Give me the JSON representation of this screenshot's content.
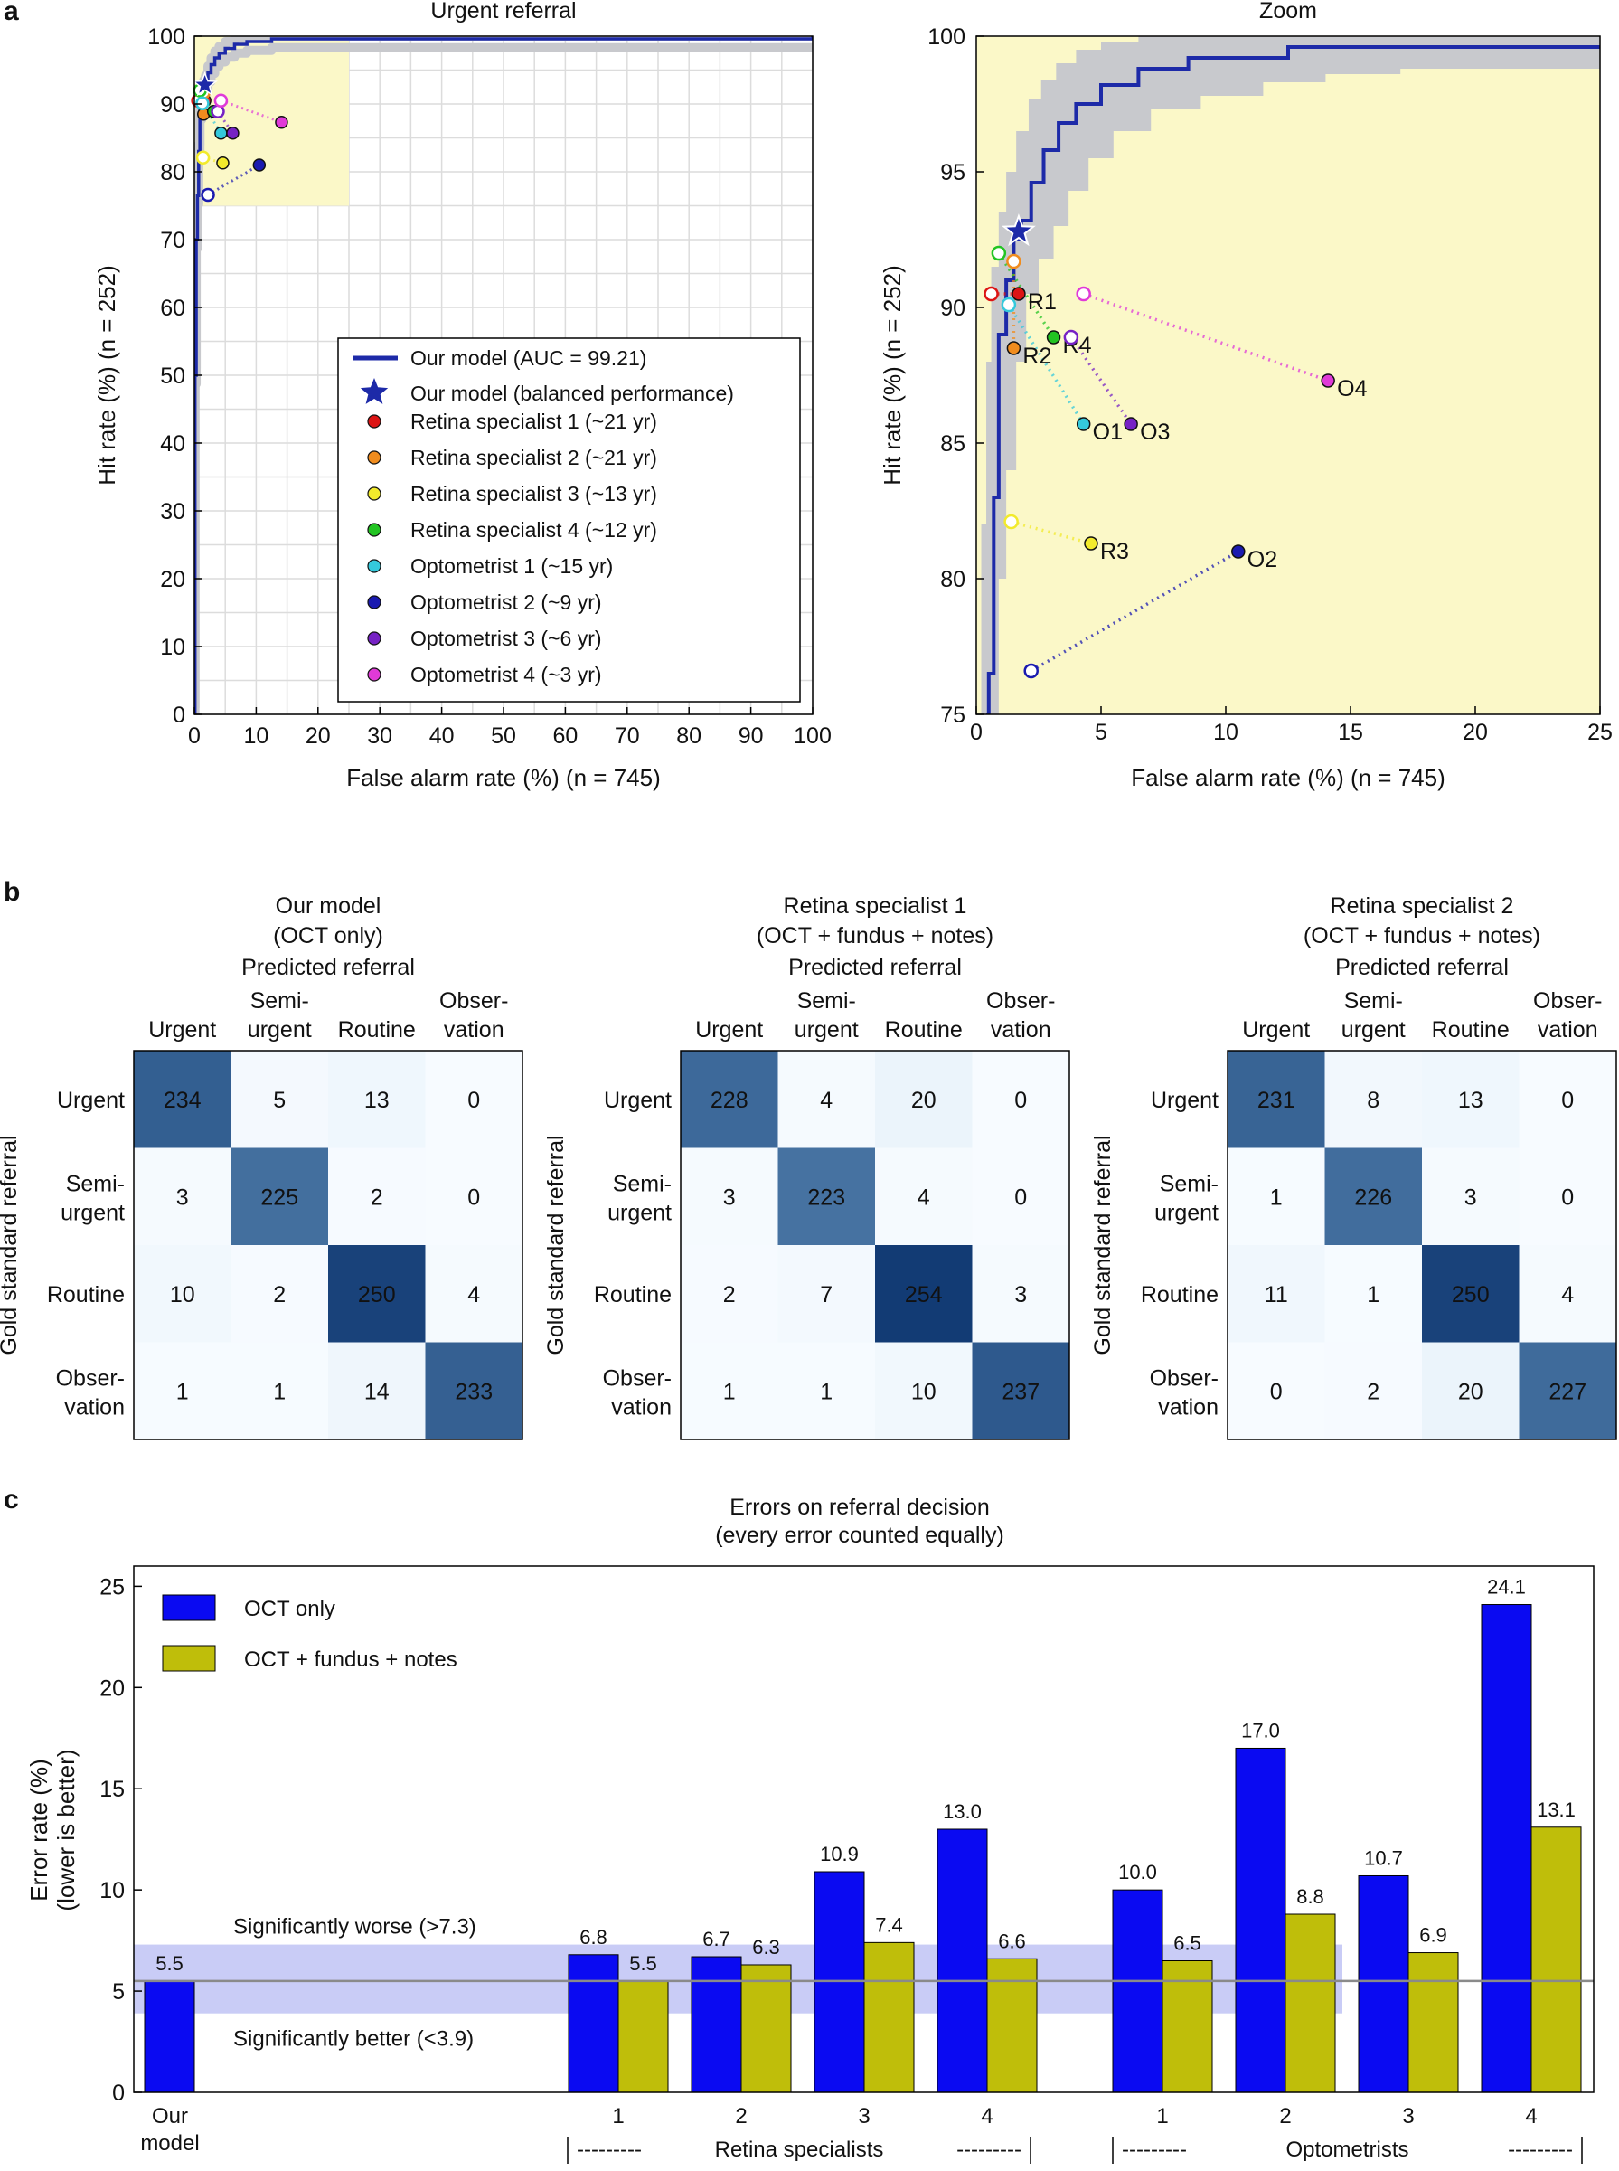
{
  "colors": {
    "model": "#1d2aa8",
    "band": "#c8c9cd",
    "zoom_bg": "#fbf8c8",
    "oct_only": "#0a0af2",
    "oct_fundus": "#bfbe0a",
    "sig_band": "#c9ccf6"
  },
  "panel_a": {
    "label": "a",
    "legend_curve": "Our model (AUC = 99.21)",
    "legend_star": "Our model (balanced performance)",
    "readers": [
      {
        "name": "Retina specialist 1 (~21 yr)",
        "tag": "R1",
        "color": "#dc1414",
        "fa_oct": 0.6,
        "hr_oct": 90.5,
        "fa_full": 1.7,
        "hr_full": 90.5
      },
      {
        "name": "Retina specialist 2 (~21 yr)",
        "tag": "R2",
        "color": "#f08c1e",
        "fa_oct": 1.5,
        "hr_oct": 91.7,
        "fa_full": 1.5,
        "hr_full": 88.5
      },
      {
        "name": "Retina specialist 3 (~13 yr)",
        "tag": "R3",
        "color": "#f2ea2c",
        "fa_oct": 1.4,
        "hr_oct": 82.1,
        "fa_full": 4.6,
        "hr_full": 81.3
      },
      {
        "name": "Retina specialist 4 (~12 yr)",
        "tag": "R4",
        "color": "#22c422",
        "fa_oct": 0.9,
        "hr_oct": 92.0,
        "fa_full": 3.1,
        "hr_full": 88.9
      },
      {
        "name": "Optometrist 1 (~15 yr)",
        "tag": "O1",
        "color": "#34c9dc",
        "fa_oct": 1.3,
        "hr_oct": 90.1,
        "fa_full": 4.3,
        "hr_full": 85.7
      },
      {
        "name": "Optometrist 2 (~9 yr)",
        "tag": "O2",
        "color": "#1a1ab0",
        "fa_oct": 2.2,
        "hr_oct": 76.6,
        "fa_full": 10.5,
        "hr_full": 81.0
      },
      {
        "name": "Optometrist 3 (~6 yr)",
        "tag": "O3",
        "color": "#7622c4",
        "fa_oct": 3.8,
        "hr_oct": 88.9,
        "fa_full": 6.2,
        "hr_full": 85.7
      },
      {
        "name": "Optometrist 4 (~3 yr)",
        "tag": "O4",
        "color": "#e03ad8",
        "fa_oct": 4.3,
        "hr_oct": 90.5,
        "fa_full": 14.1,
        "hr_full": 87.3
      }
    ]
  },
  "chart_data": [
    {
      "type": "line",
      "title": "Urgent referral",
      "xlabel": "False alarm rate (%) (n = 745)",
      "ylabel": "Hit rate (%) (n = 252)",
      "xlim": [
        0,
        100
      ],
      "ylim": [
        0,
        100
      ],
      "xticks": [
        0,
        10,
        20,
        30,
        40,
        50,
        60,
        70,
        80,
        90,
        100
      ],
      "yticks": [
        0,
        10,
        20,
        30,
        40,
        50,
        60,
        70,
        80,
        90,
        100
      ],
      "grid": true,
      "legend_position": "lower-right",
      "series": [
        {
          "name": "Our model (AUC = 99.21)",
          "x": [
            0,
            0.1,
            0.3,
            0.5,
            0.7,
            0.9,
            1.2,
            1.5,
            1.8,
            2.2,
            2.7,
            3.3,
            4.0,
            5.0,
            6.5,
            8.5,
            10.5,
            12.5,
            16,
            20,
            25,
            30,
            40,
            50,
            60,
            70,
            80,
            90,
            100
          ],
          "y": [
            0,
            50,
            70,
            76.5,
            83,
            89,
            91,
            92.5,
            93.2,
            94.6,
            95.8,
            96.8,
            97.5,
            98.2,
            98.8,
            99.2,
            99.2,
            99.6,
            99.6,
            99.6,
            99.6,
            99.6,
            99.6,
            99.6,
            99.6,
            99.6,
            99.6,
            99.6,
            100
          ]
        }
      ],
      "balanced_point": {
        "x": 1.7,
        "y": 92.8
      }
    },
    {
      "type": "line",
      "title": "Zoom",
      "xlabel": "False alarm rate (%) (n = 745)",
      "ylabel": "Hit rate (%) (n = 252)",
      "xlim": [
        0,
        25
      ],
      "ylim": [
        75,
        100
      ],
      "xticks": [
        0,
        5,
        10,
        15,
        20,
        25
      ],
      "yticks": [
        75,
        80,
        85,
        90,
        95,
        100
      ],
      "grid": false,
      "series": [
        {
          "name": "Our model (AUC = 99.21)",
          "x": [
            0.4,
            0.5,
            0.7,
            0.9,
            1.2,
            1.5,
            1.8,
            2.2,
            2.7,
            3.3,
            4.0,
            5.0,
            6.5,
            8.5,
            10.5,
            12.5,
            16,
            20,
            25
          ],
          "y": [
            75,
            76.5,
            83,
            89,
            91,
            92.5,
            93.2,
            94.6,
            95.8,
            96.8,
            97.5,
            98.2,
            98.8,
            99.2,
            99.2,
            99.6,
            99.6,
            99.6,
            99.6
          ]
        }
      ],
      "balanced_point": {
        "x": 1.7,
        "y": 92.8
      }
    },
    {
      "type": "heatmap",
      "title": "Our model",
      "subtitle": "(OCT only)",
      "header": "Predicted referral",
      "ylabel": "Gold standard referral",
      "matrix": [
        [
          234,
          5,
          13,
          0
        ],
        [
          3,
          225,
          2,
          0
        ],
        [
          10,
          2,
          250,
          4
        ],
        [
          1,
          1,
          14,
          233
        ]
      ]
    },
    {
      "type": "heatmap",
      "title": "Retina specialist 1",
      "subtitle": "(OCT + fundus + notes)",
      "header": "Predicted referral",
      "ylabel": "Gold standard referral",
      "matrix": [
        [
          228,
          4,
          20,
          0
        ],
        [
          3,
          223,
          4,
          0
        ],
        [
          2,
          7,
          254,
          3
        ],
        [
          1,
          1,
          10,
          237
        ]
      ]
    },
    {
      "type": "heatmap",
      "title": "Retina specialist 2",
      "subtitle": "(OCT + fundus + notes)",
      "header": "Predicted referral",
      "ylabel": "Gold standard referral",
      "matrix": [
        [
          231,
          8,
          13,
          0
        ],
        [
          1,
          226,
          3,
          0
        ],
        [
          11,
          1,
          250,
          4
        ],
        [
          0,
          2,
          20,
          227
        ]
      ]
    },
    {
      "type": "bar",
      "title": "Errors on referral decision",
      "subtitle": "(every error counted equally)",
      "ylabel": "Error rate (%) (lower is better)",
      "ylim": [
        0,
        26
      ],
      "yticks": [
        0,
        5,
        10,
        15,
        20,
        25
      ],
      "legend_position": "top-left",
      "model_value": 5.5,
      "series": [
        {
          "name": "OCT only",
          "values": [
            6.8,
            6.7,
            10.9,
            13.0,
            10.0,
            17.0,
            10.7,
            24.1
          ]
        },
        {
          "name": "OCT + fundus + notes",
          "values": [
            5.5,
            6.3,
            7.4,
            6.6,
            6.5,
            8.8,
            6.9,
            13.1
          ]
        }
      ],
      "significance": {
        "upper": 7.3,
        "lower": 3.9,
        "reference": 5.5
      }
    }
  ],
  "panel_b": {
    "label": "b",
    "pred_categories": [
      "Urgent",
      "Semi-|urgent",
      "Routine",
      "Obser-|vation"
    ],
    "gold_categories": [
      "Urgent",
      "Semi-|urgent",
      "Routine",
      "Obser-|vation"
    ],
    "titles": [
      {
        "title": "Our model",
        "subtitle": "(OCT only)"
      },
      {
        "title": "Retina specialist 1",
        "subtitle": "(OCT + fundus + notes)"
      },
      {
        "title": "Retina specialist 2",
        "subtitle": "(OCT + fundus + notes)"
      }
    ]
  },
  "panel_c": {
    "label": "c",
    "title_line1": "Errors on referral decision",
    "title_line2": "(every error counted equally)",
    "ylabel_line1": "Error rate (%)",
    "ylabel_line2": "(lower is better)",
    "model_label_line1": "Our",
    "model_label_line2": "model",
    "sig_worse": "Significantly worse (>7.3)",
    "sig_better": "Significantly better (<3.9)",
    "group_labels": [
      "1",
      "2",
      "3",
      "4",
      "1",
      "2",
      "3",
      "4"
    ],
    "value_labels_oct": [
      "6.8",
      "6.7",
      "10.9",
      "13.0",
      "10.0",
      "17.0",
      "10.7",
      "24.1"
    ],
    "value_labels_full": [
      "5.5",
      "6.3",
      "7.4",
      "6.6",
      "6.5",
      "8.8",
      "6.9",
      "13.1"
    ],
    "model_value_label": "5.5",
    "group_retina": "Retina specialists",
    "group_optometrists": "Optometrists",
    "group_dashes": "---------"
  }
}
